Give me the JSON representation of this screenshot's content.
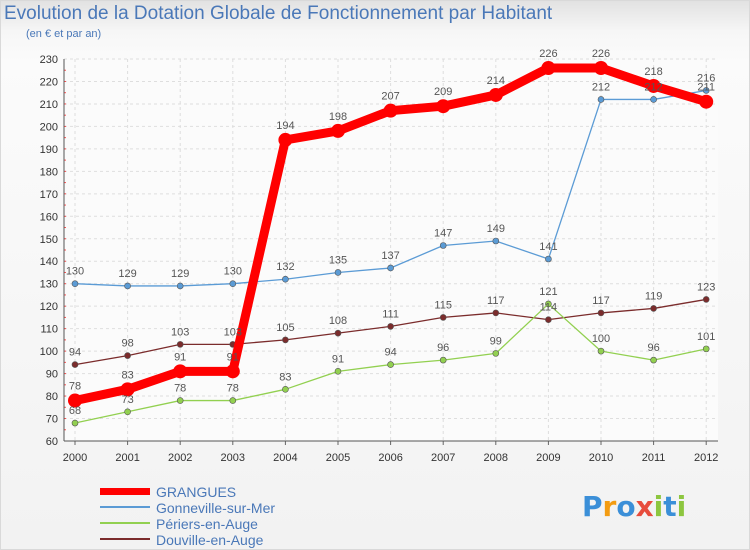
{
  "chart_data": {
    "type": "line",
    "title": "Evolution de la Dotation Globale de Fonctionnement par Habitant",
    "subtitle": "(en € et par an)",
    "x": [
      "2000",
      "2001",
      "2002",
      "2003",
      "2004",
      "2005",
      "2006",
      "2007",
      "2008",
      "2009",
      "2010",
      "2011",
      "2012"
    ],
    "ylim": [
      60,
      230
    ],
    "yticks": [
      60,
      70,
      80,
      90,
      100,
      110,
      120,
      130,
      140,
      150,
      160,
      170,
      180,
      190,
      200,
      210,
      220,
      230
    ],
    "grid": true,
    "legend": "bottom-left",
    "series": [
      {
        "name": "GRANGUES",
        "color": "#ff0000",
        "values": [
          78,
          83,
          91,
          91,
          194,
          198,
          207,
          209,
          214,
          226,
          226,
          218,
          211
        ],
        "labels": [
          "78",
          "83",
          "91",
          "91",
          "194",
          "198",
          "207",
          "209",
          "214",
          "226",
          "226",
          "218",
          "211"
        ]
      },
      {
        "name": "Gonneville-sur-Mer",
        "color": "#5b9bd5",
        "values": [
          130,
          129,
          129,
          130,
          132,
          135,
          137,
          147,
          149,
          141,
          212,
          212,
          216
        ],
        "labels": [
          "130",
          "129",
          "129",
          "130",
          "132",
          "135",
          "137",
          "147",
          "149",
          "141",
          "212",
          "212",
          "216"
        ]
      },
      {
        "name": "Périers-en-Auge",
        "color": "#92d050",
        "values": [
          68,
          73,
          78,
          78,
          83,
          91,
          94,
          96,
          99,
          121,
          100,
          96,
          101
        ],
        "labels": [
          "68",
          "73",
          "78",
          "78",
          "83",
          "91",
          "94",
          "96",
          "99",
          "121",
          "100",
          "96",
          "101"
        ]
      },
      {
        "name": "Douville-en-Auge",
        "color": "#7b2c2c",
        "values": [
          94,
          98,
          103,
          103,
          105,
          108,
          111,
          115,
          117,
          114,
          117,
          119,
          123
        ],
        "labels": [
          "94",
          "98",
          "103",
          "103",
          "105",
          "108",
          "111",
          "115",
          "117",
          "114",
          "117",
          "119",
          "123"
        ]
      }
    ]
  },
  "logo": {
    "text": "Proxiti",
    "letters": [
      "P",
      "r",
      "o",
      "x",
      "i",
      "t",
      "i"
    ],
    "colors": [
      "#3b8fd8",
      "#f39c12",
      "#3b8fd8",
      "#e74c3c",
      "#8dc63f",
      "#3b8fd8",
      "#8dc63f"
    ]
  }
}
